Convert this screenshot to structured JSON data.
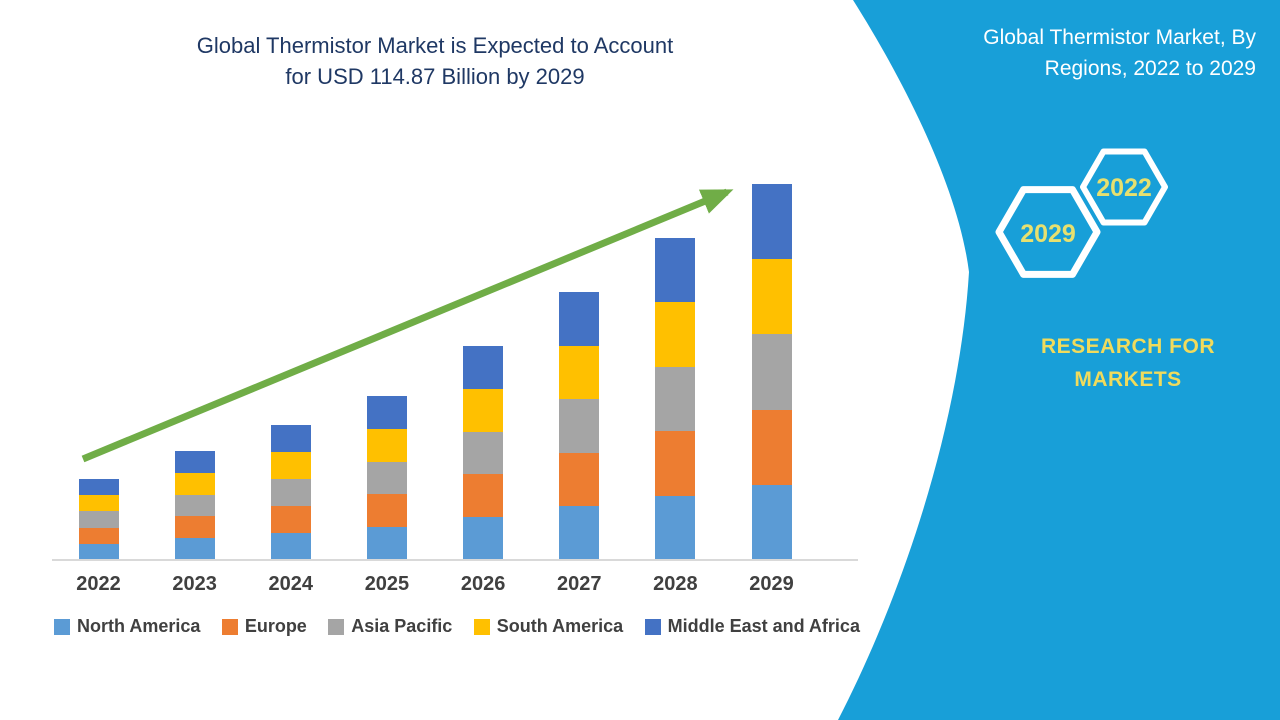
{
  "main_chart": {
    "title_line1": "Global Thermistor Market is Expected to Account",
    "title_line2": "for USD 114.87 Billion by 2029"
  },
  "chart_data": {
    "type": "bar",
    "stacked": true,
    "title": "Global Thermistor Market is Expected to Account for USD 114.87 Billion by 2029",
    "unit": "USD Billion",
    "categories": [
      "2022",
      "2023",
      "2024",
      "2025",
      "2026",
      "2027",
      "2028",
      "2029"
    ],
    "totals_estimated": [
      24.8,
      33.3,
      41.3,
      50.1,
      65.4,
      81.9,
      98.4,
      114.87
    ],
    "series": [
      {
        "name": "North America",
        "color": "#5B9BD5",
        "values": [
          4.95,
          6.66,
          8.25,
          10.02,
          13.08,
          16.38,
          19.67,
          22.97
        ]
      },
      {
        "name": "Europe",
        "color": "#ED7D31",
        "values": [
          4.95,
          6.66,
          8.25,
          10.02,
          13.08,
          16.38,
          19.67,
          22.97
        ]
      },
      {
        "name": "Asia Pacific",
        "color": "#A5A5A5",
        "values": [
          4.95,
          6.66,
          8.25,
          10.02,
          13.08,
          16.38,
          19.67,
          22.97
        ]
      },
      {
        "name": "South America",
        "color": "#FFC000",
        "values": [
          4.95,
          6.66,
          8.25,
          10.02,
          13.08,
          16.38,
          19.67,
          22.97
        ]
      },
      {
        "name": "Middle East and Africa",
        "color": "#4472C4",
        "values": [
          4.95,
          6.66,
          8.25,
          10.02,
          13.08,
          16.38,
          19.67,
          22.97
        ]
      }
    ],
    "legend_position": "bottom",
    "gridlines": false,
    "trend_arrow_color": "#70AD47",
    "axis_line_color": "#D9D9D9"
  },
  "side_panel": {
    "title_line1": "Global Thermistor Market, By",
    "title_line2": "Regions, 2022 to 2029",
    "hexagon_years": {
      "small": "2022",
      "large": "2029"
    },
    "brand_line1": "RESEARCH FOR",
    "brand_line2": "MARKETS",
    "background_color": "#189FD8",
    "year_text_color": "#E7E06F",
    "brand_text_color": "#F0DB5C"
  }
}
